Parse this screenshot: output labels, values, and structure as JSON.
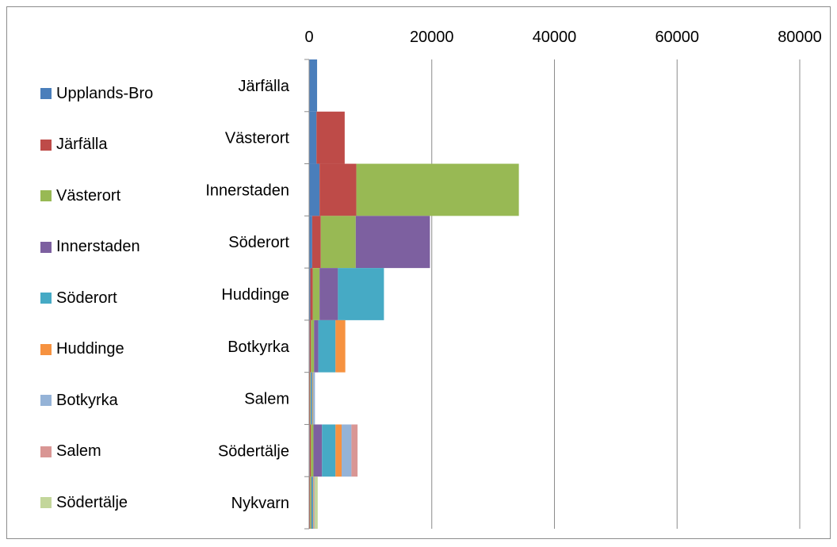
{
  "chart_data": {
    "type": "bar",
    "orientation": "horizontal",
    "stacked": true,
    "title": "",
    "xlabel": "",
    "ylabel": "",
    "xlim": [
      0,
      80000
    ],
    "x_ticks": [
      "0",
      "20000",
      "40000",
      "60000",
      "80000"
    ],
    "x_axis_position": "top",
    "grid": "vertical",
    "legend_position": "left",
    "categories": [
      "Järfälla",
      "Västerort",
      "Innerstaden",
      "Söderort",
      "Huddinge",
      "Botkyrka",
      "Salem",
      "Södertälje",
      "Nykvarn"
    ],
    "series": [
      {
        "name": "Upplands-Bro",
        "color": "#4a7ebb",
        "values": [
          1300,
          1200,
          1700,
          500,
          200,
          100,
          50,
          100,
          50
        ]
      },
      {
        "name": "Järfälla",
        "color": "#be4b48",
        "values": [
          0,
          4600,
          6000,
          1400,
          400,
          200,
          100,
          200,
          100
        ]
      },
      {
        "name": "Västerort",
        "color": "#98b954",
        "values": [
          0,
          0,
          26500,
          5700,
          1100,
          500,
          100,
          400,
          200
        ]
      },
      {
        "name": "Innerstaden",
        "color": "#7d60a0",
        "values": [
          0,
          0,
          0,
          12100,
          3000,
          700,
          100,
          1400,
          100
        ]
      },
      {
        "name": "Söderort",
        "color": "#46aac5",
        "values": [
          0,
          0,
          0,
          0,
          7500,
          2800,
          200,
          2200,
          200
        ]
      },
      {
        "name": "Huddinge",
        "color": "#f69240",
        "values": [
          0,
          0,
          0,
          0,
          0,
          1600,
          100,
          1000,
          100
        ]
      },
      {
        "name": "Botkyrka",
        "color": "#95b3d7",
        "values": [
          0,
          0,
          0,
          0,
          0,
          0,
          300,
          1600,
          100
        ]
      },
      {
        "name": "Salem",
        "color": "#d99694",
        "values": [
          0,
          0,
          0,
          0,
          0,
          0,
          0,
          1000,
          50
        ]
      },
      {
        "name": "Södertälje",
        "color": "#c3d69b",
        "values": [
          0,
          0,
          0,
          0,
          0,
          0,
          0,
          0,
          500
        ]
      }
    ]
  }
}
